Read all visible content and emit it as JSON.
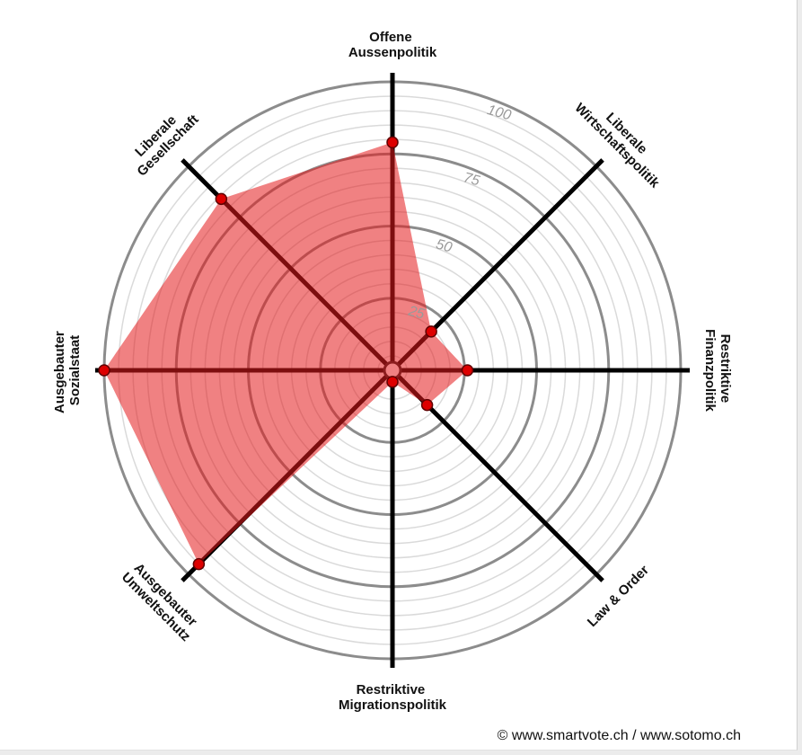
{
  "chart_data": {
    "type": "radar",
    "categories": [
      "Offene Aussenpolitik",
      "Liberale Wirtschaftspolitik",
      "Restriktive Finanzpolitik",
      "Law & Order",
      "Restriktive Migrationspolitik",
      "Ausgebauter Umweltschutz",
      "Ausgebauter Sozialstaat",
      "Liberale Gesellschaft"
    ],
    "values": [
      79,
      19,
      26,
      17,
      4,
      95,
      100,
      84
    ],
    "range": [
      0,
      100
    ],
    "ticks": [
      25,
      50,
      75,
      100
    ],
    "minor_grid_step": 5,
    "grid": true,
    "colors": {
      "area": "#e31a1c",
      "point": "#dd0000",
      "axis": "#000000",
      "major_ring": "#8c8c8c",
      "minor_ring": "#dadada"
    }
  },
  "footer": {
    "credit": "© www.smartvote.ch / www.sotomo.ch"
  }
}
